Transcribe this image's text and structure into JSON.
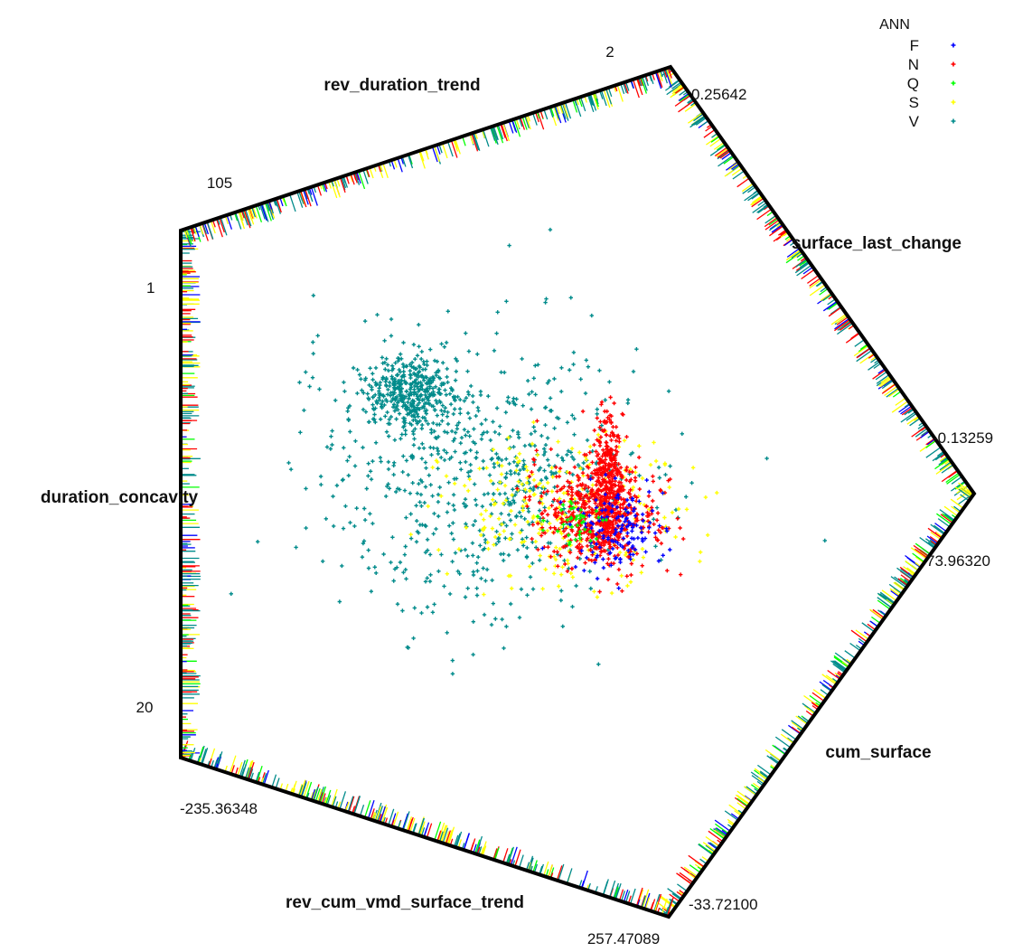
{
  "chart_data": {
    "type": "scatter",
    "subtype": "radviz",
    "title": "",
    "legend": {
      "title": "ANN",
      "placement": "top-right",
      "entries": [
        {
          "label": "F",
          "color": "#0000ff"
        },
        {
          "label": "N",
          "color": "#ff0000"
        },
        {
          "label": "Q",
          "color": "#00ff00"
        },
        {
          "label": "S",
          "color": "#ffff00"
        },
        {
          "label": "V",
          "color": "#008b8b"
        }
      ]
    },
    "anchors": [
      {
        "name": "rev_duration_trend",
        "min": "105",
        "max": "2"
      },
      {
        "name": "surface_last_change",
        "min": "0.25642",
        "max": "-0.13259"
      },
      {
        "name": "cum_surface",
        "min": "73.96320",
        "max": "-33.72100"
      },
      {
        "name": "rev_cum_vmd_surface_trend",
        "min": "257.47089",
        "max": "-235.36348"
      },
      {
        "name": "duration_concavity",
        "min": "20",
        "max": "1"
      }
    ],
    "series": [
      {
        "name": "V",
        "color": "#008b8b",
        "centroid": [
          -0.33,
          0.04
        ],
        "spread": [
          0.27,
          0.22
        ]
      },
      {
        "name": "S",
        "color": "#ffff00",
        "centroid": [
          -0.05,
          -0.06
        ],
        "spread": [
          0.2,
          0.12
        ]
      },
      {
        "name": "N",
        "color": "#ff0000",
        "centroid": [
          0.06,
          -0.08
        ],
        "spread": [
          0.1,
          0.09
        ]
      },
      {
        "name": "F",
        "color": "#0000ff",
        "centroid": [
          0.13,
          -0.12
        ],
        "spread": [
          0.08,
          0.07
        ]
      },
      {
        "name": "Q",
        "color": "#00ff00",
        "centroid": [
          0.0,
          -0.1
        ],
        "spread": [
          0.05,
          0.04
        ]
      }
    ],
    "grid": false
  }
}
